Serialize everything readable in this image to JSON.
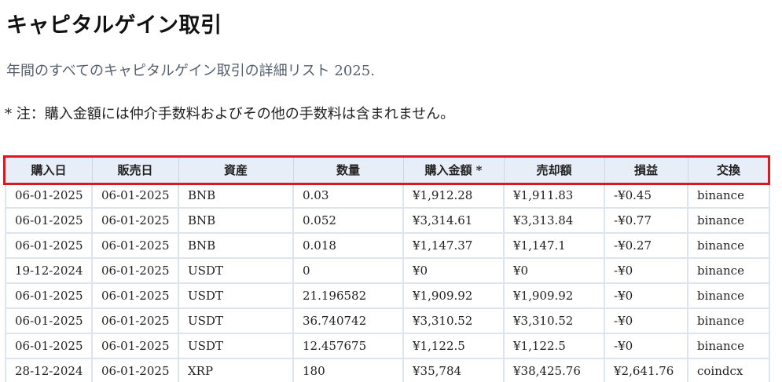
{
  "page": {
    "title": "キャピタルゲイン取引",
    "subtitle": "年間のすべてのキャピタルゲイン取引の詳細リスト 2025.",
    "note": "* 注：購入金額には仲介手数料およびその他の手数料は含まれません。"
  },
  "table": {
    "headers": [
      "購入日",
      "販売日",
      "資産",
      "数量",
      "購入金額 *",
      "売却額",
      "損益",
      "交換"
    ],
    "rows": [
      [
        "06-01-2025",
        "06-01-2025",
        "BNB",
        "0.03",
        "¥1,912.28",
        "¥1,911.83",
        "-¥0.45",
        "binance"
      ],
      [
        "06-01-2025",
        "06-01-2025",
        "BNB",
        "0.052",
        "¥3,314.61",
        "¥3,313.84",
        "-¥0.77",
        "binance"
      ],
      [
        "06-01-2025",
        "06-01-2025",
        "BNB",
        "0.018",
        "¥1,147.37",
        "¥1,147.1",
        "-¥0.27",
        "binance"
      ],
      [
        "19-12-2024",
        "06-01-2025",
        "USDT",
        "0",
        "¥0",
        "¥0",
        "-¥0",
        "binance"
      ],
      [
        "06-01-2025",
        "06-01-2025",
        "USDT",
        "21.196582",
        "¥1,909.92",
        "¥1,909.92",
        "-¥0",
        "binance"
      ],
      [
        "06-01-2025",
        "06-01-2025",
        "USDT",
        "36.740742",
        "¥3,310.52",
        "¥3,310.52",
        "-¥0",
        "binance"
      ],
      [
        "06-01-2025",
        "06-01-2025",
        "USDT",
        "12.457675",
        "¥1,122.5",
        "¥1,122.5",
        "-¥0",
        "binance"
      ],
      [
        "28-12-2024",
        "06-01-2025",
        "XRP",
        "180",
        "¥35,784",
        "¥38,425.76",
        "¥2,641.76",
        "coindcx"
      ]
    ]
  },
  "colors": {
    "header_bg": "#e7eef7",
    "highlight_outline": "#e0161c",
    "subtitle_text": "#55606e"
  }
}
